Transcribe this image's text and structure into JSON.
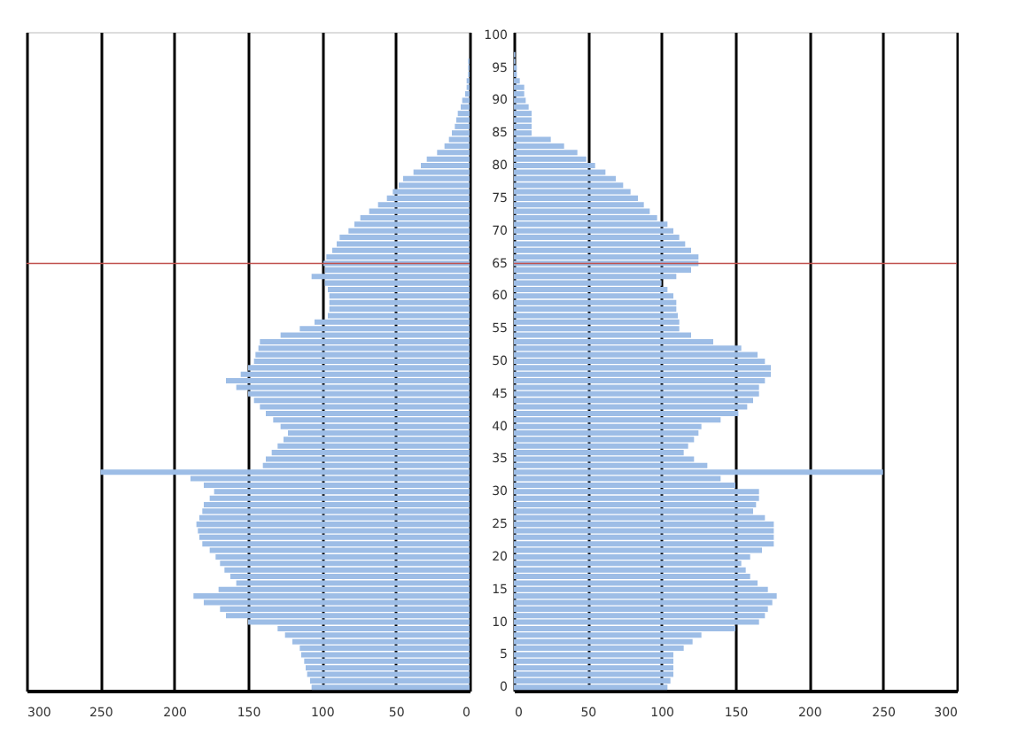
{
  "chart_data": [
    {
      "type": "bar",
      "orientation": "horizontal",
      "categories": [
        "100",
        null,
        null,
        null,
        null,
        "95",
        null,
        null,
        null,
        null,
        "90",
        null,
        null,
        null,
        null,
        "85",
        null,
        null,
        null,
        null,
        "80",
        null,
        null,
        null,
        null,
        "75",
        null,
        null,
        null,
        null,
        "70",
        null,
        null,
        null,
        null,
        "65",
        null,
        null,
        null,
        null,
        "60",
        null,
        null,
        null,
        null,
        "55",
        null,
        null,
        null,
        null,
        "50",
        null,
        null,
        null,
        null,
        "45",
        null,
        null,
        null,
        null,
        "40",
        null,
        null,
        null,
        null,
        "35",
        null,
        null,
        null,
        null,
        "30",
        null,
        null,
        null,
        null,
        "25",
        null,
        null,
        null,
        null,
        "20",
        null,
        null,
        null,
        null,
        "15",
        null,
        null,
        null,
        null,
        "10",
        null,
        null,
        null,
        null,
        "5",
        null,
        null,
        null,
        null,
        "0"
      ],
      "values": [
        0,
        0,
        0,
        0,
        1,
        1,
        1,
        2,
        2,
        3,
        5,
        6,
        8,
        9,
        10,
        12,
        14,
        17,
        22,
        29,
        33,
        38,
        45,
        48,
        52,
        56,
        62,
        68,
        74,
        78,
        82,
        88,
        90,
        93,
        97,
        99,
        98,
        107,
        98,
        96,
        95,
        95,
        95,
        96,
        105,
        115,
        128,
        142,
        143,
        145,
        146,
        150,
        155,
        165,
        158,
        150,
        146,
        142,
        138,
        133,
        128,
        123,
        126,
        130,
        134,
        138,
        140,
        250,
        189,
        180,
        173,
        176,
        180,
        181,
        183,
        185,
        184,
        183,
        181,
        176,
        172,
        169,
        166,
        162,
        158,
        170,
        187,
        180,
        169,
        165,
        150,
        130,
        125,
        120,
        115,
        114,
        112,
        111,
        110,
        108,
        107
      ],
      "color": "#9dbde6",
      "xlim": [
        300,
        0
      ],
      "xticks": [
        300,
        250,
        200,
        150,
        100,
        50,
        0
      ],
      "grid": "x",
      "tick_labels": "x",
      "ref_lines": [
        {
          "axis": "y",
          "value": "65",
          "color": "#c0504d"
        }
      ]
    },
    {
      "type": "bar",
      "orientation": "horizontal",
      "categories": [
        "100",
        null,
        null,
        null,
        null,
        "95",
        null,
        null,
        null,
        null,
        "90",
        null,
        null,
        null,
        null,
        "85",
        null,
        null,
        null,
        null,
        "80",
        null,
        null,
        null,
        null,
        "75",
        null,
        null,
        null,
        null,
        "70",
        null,
        null,
        null,
        null,
        "65",
        null,
        null,
        null,
        null,
        "60",
        null,
        null,
        null,
        null,
        "55",
        null,
        null,
        null,
        null,
        "50",
        null,
        null,
        null,
        null,
        "45",
        null,
        null,
        null,
        null,
        "40",
        null,
        null,
        null,
        null,
        "35",
        null,
        null,
        null,
        null,
        "30",
        null,
        null,
        null,
        null,
        "25",
        null,
        null,
        null,
        null,
        "20",
        null,
        null,
        null,
        null,
        "15",
        null,
        null,
        null,
        null,
        "10",
        null,
        null,
        null,
        null,
        "5",
        null,
        null,
        null,
        null,
        "0"
      ],
      "values": [
        0,
        0,
        0,
        1,
        1,
        2,
        2,
        4,
        7,
        7,
        8,
        10,
        12,
        12,
        12,
        12,
        25,
        34,
        43,
        49,
        55,
        62,
        69,
        74,
        79,
        84,
        88,
        92,
        97,
        104,
        108,
        112,
        116,
        120,
        125,
        125,
        120,
        110,
        100,
        104,
        108,
        110,
        110,
        111,
        112,
        112,
        120,
        135,
        154,
        165,
        170,
        174,
        174,
        170,
        166,
        166,
        162,
        158,
        152,
        140,
        127,
        125,
        122,
        118,
        115,
        122,
        131,
        250,
        140,
        150,
        166,
        166,
        164,
        162,
        170,
        176,
        176,
        176,
        176,
        168,
        160,
        154,
        157,
        160,
        165,
        172,
        178,
        175,
        172,
        170,
        166,
        150,
        127,
        121,
        115,
        108,
        108,
        108,
        108,
        106,
        104
      ],
      "color": "#9dbde6",
      "xlim": [
        0,
        300
      ],
      "xticks": [
        0,
        50,
        100,
        150,
        200,
        250,
        300
      ],
      "grid": "x",
      "ref_lines": [
        {
          "axis": "y",
          "value": "65",
          "color": "#c0504d"
        }
      ]
    }
  ]
}
